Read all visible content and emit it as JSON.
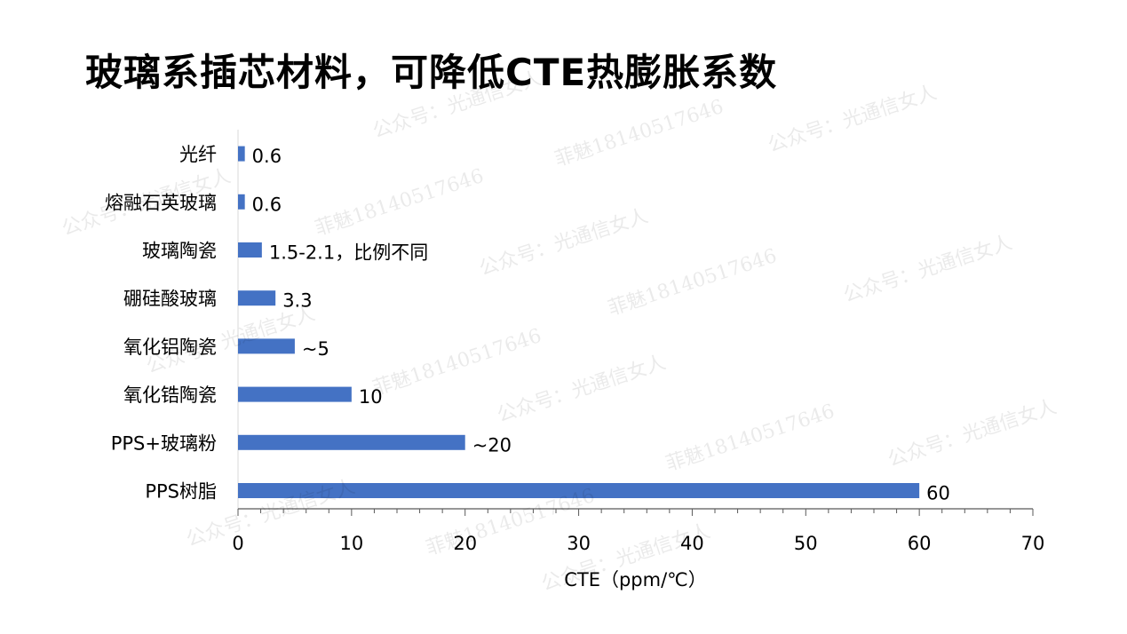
{
  "title": "玻璃系插芯材料，可降低CTE热膨胀系数",
  "watermarks": [
    "公众号：光通信女人",
    "菲魅18140517646"
  ],
  "chart_data": {
    "type": "bar",
    "orientation": "horizontal",
    "categories": [
      "光纤",
      "熔融石英玻璃",
      "玻璃陶瓷",
      "硼硅酸玻璃",
      "氧化铝陶瓷",
      "氧化锆陶瓷",
      "PPS+玻璃粉",
      "PPS树脂"
    ],
    "values": [
      0.6,
      0.6,
      2.1,
      3.3,
      5,
      10,
      20,
      60
    ],
    "data_labels": [
      "0.6",
      "0.6",
      "1.5-2.1，比例不同",
      "3.3",
      "~5",
      "10",
      "~20",
      "60"
    ],
    "xlabel": "CTE（ppm/℃）",
    "ylabel": "",
    "xlim": [
      0,
      70
    ],
    "x_ticks": [
      "0",
      "10",
      "20",
      "30",
      "40",
      "50",
      "60",
      "70"
    ],
    "grid": false,
    "legend": "none",
    "bar_color": "#4472C4"
  }
}
